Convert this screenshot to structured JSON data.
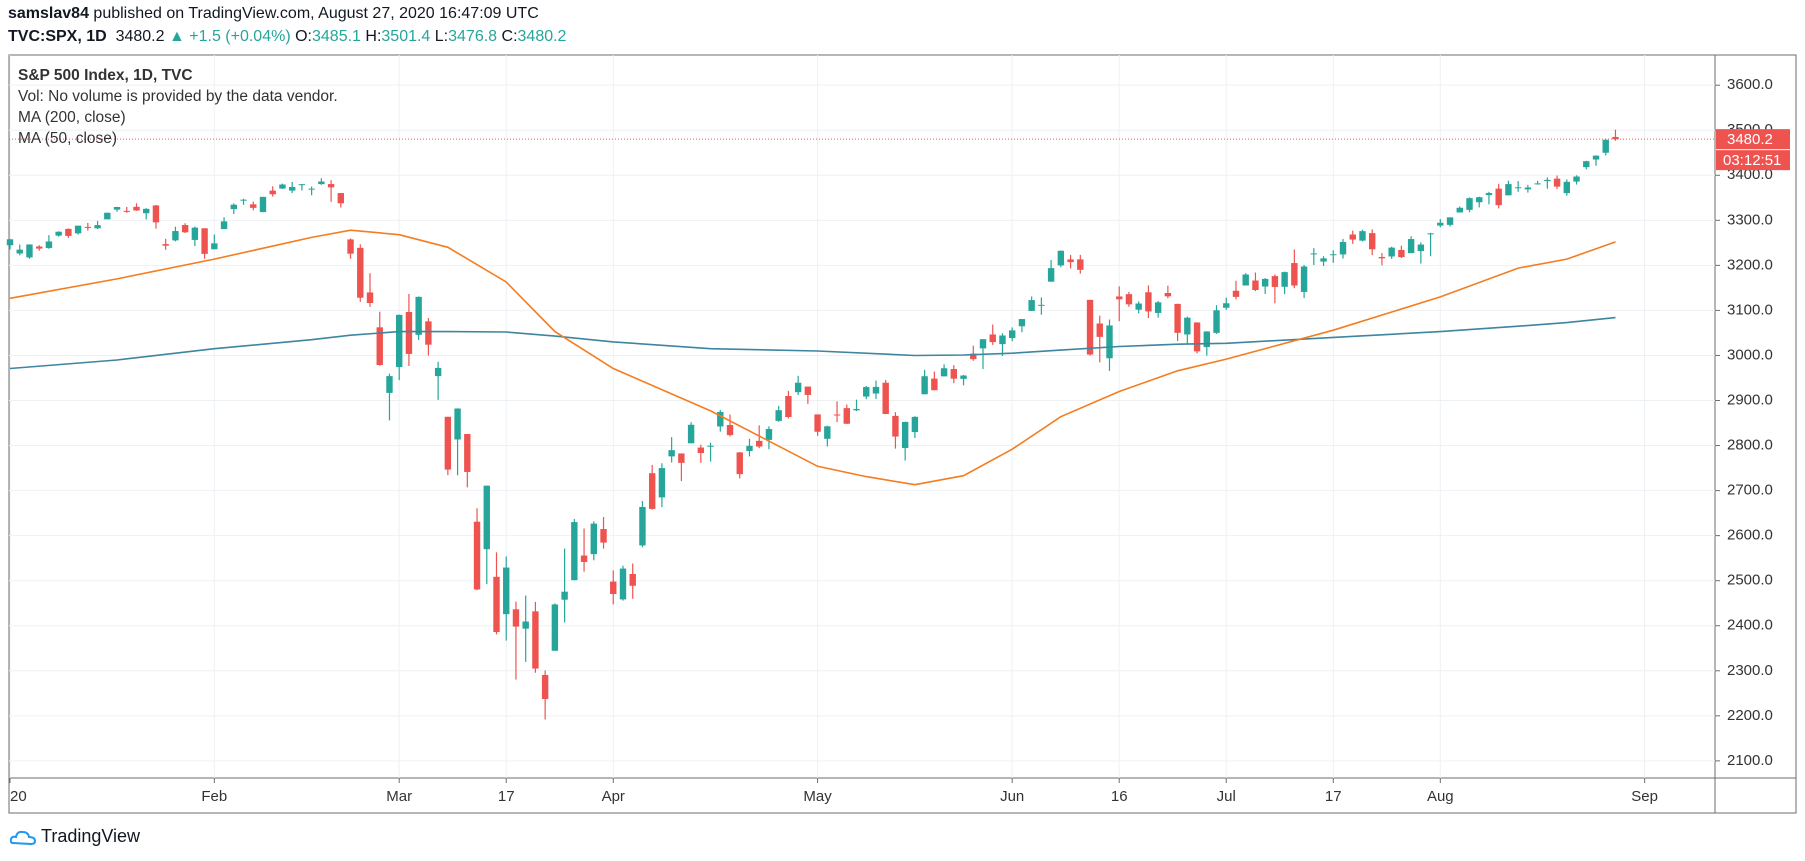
{
  "header": {
    "author": "samslav84",
    "published": "published on TradingView.com, August 27, 2020 16:47:09 UTC",
    "symbol": "TVC:SPX, 1D",
    "last": "3480.2",
    "change": "▲ +1.5 (+0.04%)",
    "ohlc": [
      {
        "label": "O:",
        "value": "3485.1"
      },
      {
        "label": "H:",
        "value": "3501.4"
      },
      {
        "label": "L:",
        "value": "3476.8"
      },
      {
        "label": "C:",
        "value": "3480.2"
      }
    ]
  },
  "footer": {
    "brand": "TradingView"
  },
  "chart_data": {
    "type": "candlestick",
    "title": "S&P 500 Index, 1D, TVC",
    "volume_note": "Vol: No volume is provided by the data vendor.",
    "up_color": "#26a69a",
    "down_color": "#ef5350",
    "grid": true,
    "last_price": 3480.2,
    "countdown": "03:12:51",
    "ylim": [
      2062,
      3667
    ],
    "yticks": [
      {
        "value": 2100,
        "label": "2100.0"
      },
      {
        "value": 2200,
        "label": "2200.0"
      },
      {
        "value": 2300,
        "label": "2300.0"
      },
      {
        "value": 2400,
        "label": "2400.0"
      },
      {
        "value": 2500,
        "label": "2500.0"
      },
      {
        "value": 2600,
        "label": "2600.0"
      },
      {
        "value": 2700,
        "label": "2700.0"
      },
      {
        "value": 2800,
        "label": "2800.0"
      },
      {
        "value": 2900,
        "label": "2900.0"
      },
      {
        "value": 3000,
        "label": "3000.0"
      },
      {
        "value": 3100,
        "label": "3100.0"
      },
      {
        "value": 3200,
        "label": "3200.0"
      },
      {
        "value": 3300,
        "label": "3300.0"
      },
      {
        "value": 3400,
        "label": "3400.0"
      },
      {
        "value": 3500,
        "label": "3500.0"
      },
      {
        "value": 3600,
        "label": "3600.0"
      }
    ],
    "xticks": [
      {
        "value": "2020-01-02",
        "label": "20"
      },
      {
        "value": "2020-02-03",
        "label": "Feb"
      },
      {
        "value": "2020-03-02",
        "label": "Mar"
      },
      {
        "value": "2020-03-17",
        "label": "17"
      },
      {
        "value": "2020-04-01",
        "label": "Apr"
      },
      {
        "value": "2020-05-01",
        "label": "May"
      },
      {
        "value": "2020-06-01",
        "label": "Jun"
      },
      {
        "value": "2020-06-16",
        "label": "16"
      },
      {
        "value": "2020-07-01",
        "label": "Jul"
      },
      {
        "value": "2020-07-17",
        "label": "17"
      },
      {
        "value": "2020-08-03",
        "label": "Aug"
      },
      {
        "value": "2020-09-01",
        "label": "Sep"
      }
    ],
    "x": [
      "2020-01-02",
      "2020-01-03",
      "2020-01-06",
      "2020-01-07",
      "2020-01-08",
      "2020-01-09",
      "2020-01-10",
      "2020-01-13",
      "2020-01-14",
      "2020-01-15",
      "2020-01-16",
      "2020-01-17",
      "2020-01-21",
      "2020-01-22",
      "2020-01-23",
      "2020-01-24",
      "2020-01-27",
      "2020-01-28",
      "2020-01-29",
      "2020-01-30",
      "2020-01-31",
      "2020-02-03",
      "2020-02-04",
      "2020-02-05",
      "2020-02-06",
      "2020-02-07",
      "2020-02-10",
      "2020-02-11",
      "2020-02-12",
      "2020-02-13",
      "2020-02-14",
      "2020-02-18",
      "2020-02-19",
      "2020-02-20",
      "2020-02-21",
      "2020-02-24",
      "2020-02-25",
      "2020-02-26",
      "2020-02-27",
      "2020-02-28",
      "2020-03-02",
      "2020-03-03",
      "2020-03-04",
      "2020-03-05",
      "2020-03-06",
      "2020-03-09",
      "2020-03-10",
      "2020-03-11",
      "2020-03-12",
      "2020-03-13",
      "2020-03-16",
      "2020-03-17",
      "2020-03-18",
      "2020-03-19",
      "2020-03-20",
      "2020-03-23",
      "2020-03-24",
      "2020-03-25",
      "2020-03-26",
      "2020-03-27",
      "2020-03-30",
      "2020-03-31",
      "2020-04-01",
      "2020-04-02",
      "2020-04-03",
      "2020-04-06",
      "2020-04-07",
      "2020-04-08",
      "2020-04-09",
      "2020-04-13",
      "2020-04-14",
      "2020-04-15",
      "2020-04-16",
      "2020-04-17",
      "2020-04-20",
      "2020-04-21",
      "2020-04-22",
      "2020-04-23",
      "2020-04-24",
      "2020-04-27",
      "2020-04-28",
      "2020-04-29",
      "2020-04-30",
      "2020-05-01",
      "2020-05-04",
      "2020-05-05",
      "2020-05-06",
      "2020-05-07",
      "2020-05-08",
      "2020-05-11",
      "2020-05-12",
      "2020-05-13",
      "2020-05-14",
      "2020-05-15",
      "2020-05-18",
      "2020-05-19",
      "2020-05-20",
      "2020-05-21",
      "2020-05-22",
      "2020-05-26",
      "2020-05-27",
      "2020-05-28",
      "2020-05-29",
      "2020-06-01",
      "2020-06-02",
      "2020-06-03",
      "2020-06-04",
      "2020-06-05",
      "2020-06-08",
      "2020-06-09",
      "2020-06-10",
      "2020-06-11",
      "2020-06-12",
      "2020-06-15",
      "2020-06-16",
      "2020-06-17",
      "2020-06-18",
      "2020-06-19",
      "2020-06-22",
      "2020-06-23",
      "2020-06-24",
      "2020-06-25",
      "2020-06-26",
      "2020-06-29",
      "2020-06-30",
      "2020-07-01",
      "2020-07-02",
      "2020-07-06",
      "2020-07-07",
      "2020-07-08",
      "2020-07-09",
      "2020-07-10",
      "2020-07-13",
      "2020-07-14",
      "2020-07-15",
      "2020-07-16",
      "2020-07-17",
      "2020-07-20",
      "2020-07-21",
      "2020-07-22",
      "2020-07-23",
      "2020-07-24",
      "2020-07-27",
      "2020-07-28",
      "2020-07-29",
      "2020-07-30",
      "2020-07-31",
      "2020-08-03",
      "2020-08-04",
      "2020-08-05",
      "2020-08-06",
      "2020-08-07",
      "2020-08-10",
      "2020-08-11",
      "2020-08-12",
      "2020-08-13",
      "2020-08-14",
      "2020-08-17",
      "2020-08-18",
      "2020-08-19",
      "2020-08-20",
      "2020-08-21",
      "2020-08-24",
      "2020-08-25",
      "2020-08-26",
      "2020-08-27"
    ],
    "open": [
      3244.7,
      3226.4,
      3217.6,
      3241.9,
      3238.6,
      3266.0,
      3281.0,
      3271.1,
      3285.4,
      3282.3,
      3302.2,
      3323.7,
      3321.0,
      3330.0,
      3315.8,
      3333.1,
      3247.2,
      3255.4,
      3289.5,
      3256.5,
      3282.3,
      3235.7,
      3280.6,
      3324.9,
      3344.9,
      3335.5,
      3318.3,
      3365.9,
      3370.5,
      3365.9,
      3378.1,
      3369.0,
      3380.4,
      3380.5,
      3360.5,
      3257.6,
      3238.9,
      3139.9,
      3062.5,
      2916.9,
      2974.3,
      3096.5,
      3045.8,
      3075.7,
      2954.2,
      2863.9,
      2813.5,
      2825.6,
      2630.9,
      2569.99,
      2508.6,
      2425.7,
      2436.5,
      2393.5,
      2431.9,
      2290.7,
      2344.4,
      2457.8,
      2501.3,
      2555.9,
      2558.98,
      2614.7,
      2498.1,
      2458.5,
      2514.9,
      2578.3,
      2738.7,
      2685.0,
      2776.0,
      2782.5,
      2805.1,
      2795.6,
      2799.3,
      2842.4,
      2845.6,
      2784.8,
      2787.9,
      2810.4,
      2812.6,
      2854.7,
      2909.96,
      2918.5,
      2930.9,
      2869.1,
      2815.0,
      2868.9,
      2883.1,
      2878.3,
      2908.8,
      2915.5,
      2939.5,
      2865.9,
      2794.5,
      2829.9,
      2913.9,
      2948.6,
      2953.6,
      2969.95,
      2948.0,
      3004.1,
      3015.7,
      3046.6,
      3025.2,
      3038.8,
      3064.8,
      3098.9,
      3111.6,
      3163.8,
      3199.9,
      3213.3,
      3213.4,
      3123.5,
      3071.0,
      2993.8,
      3131.0,
      3136.1,
      3101.6,
      3140.3,
      3094.4,
      3138.7,
      3114.4,
      3046.6,
      3073.2,
      3018.6,
      3050.2,
      3105.9,
      3143.6,
      3155.3,
      3166.4,
      3153.1,
      3176.2,
      3152.5,
      3205.1,
      3141.1,
      3225.98,
      3208.4,
      3224.2,
      3224.3,
      3268.5,
      3254.9,
      3271.6,
      3218.6,
      3219.8,
      3234.3,
      3227.2,
      3231.8,
      3270.5,
      3288.3,
      3289.9,
      3317.4,
      3323.2,
      3340.1,
      3356.0,
      3370.3,
      3355.5,
      3372.9,
      3368.7,
      3380.9,
      3387.0,
      3392.5,
      3360.5,
      3386.0,
      3418.1,
      3435.0,
      3449.97,
      3485.1
    ],
    "high": [
      3258.1,
      3246.2,
      3246.8,
      3244.9,
      3267.1,
      3275.6,
      3282.0,
      3288.1,
      3294.2,
      3298.7,
      3317.1,
      3329.9,
      3329.8,
      3337.8,
      3326.9,
      3334.0,
      3258.9,
      3285.8,
      3293.5,
      3285.9,
      3282.3,
      3268.4,
      3306.9,
      3337.6,
      3347.9,
      3341.4,
      3352.3,
      3375.6,
      3381.5,
      3385.1,
      3380.7,
      3375.0,
      3393.5,
      3389.2,
      3360.8,
      3259.8,
      3246.9,
      3182.5,
      3097.1,
      2959.7,
      3090.9,
      3136.7,
      3130.97,
      3083.0,
      2985.9,
      2863.9,
      2882.6,
      2825.6,
      2660.9,
      2711.3,
      2562.98,
      2553.9,
      2453.6,
      2466.97,
      2453.0,
      2300.7,
      2449.7,
      2571.4,
      2637.0,
      2615.9,
      2631.8,
      2641.4,
      2522.8,
      2533.2,
      2538.2,
      2676.9,
      2756.9,
      2760.8,
      2818.6,
      2782.5,
      2851.9,
      2801.9,
      2806.5,
      2879.2,
      2868.98,
      2785.5,
      2815.1,
      2844.9,
      2842.7,
      2887.7,
      2921.2,
      2954.9,
      2930.9,
      2869.1,
      2844.2,
      2898.2,
      2891.1,
      2901.9,
      2932.2,
      2944.3,
      2945.8,
      2874.1,
      2852.8,
      2865.0,
      2968.1,
      2964.2,
      2980.3,
      2978.5,
      2956.8,
      3021.7,
      3036.3,
      3068.7,
      3049.2,
      3062.2,
      3081.1,
      3130.9,
      3128.9,
      3211.7,
      3233.1,
      3223.0,
      3223.3,
      3123.5,
      3088.4,
      3079.8,
      3153.5,
      3141.2,
      3120.0,
      3155.5,
      3120.9,
      3154.9,
      3115.0,
      3086.3,
      3073.7,
      3053.9,
      3111.5,
      3128.4,
      3165.8,
      3182.6,
      3184.2,
      3171.8,
      3179.8,
      3186.2,
      3235.3,
      3200.95,
      3238.3,
      3220.4,
      3233.5,
      3258.6,
      3277.3,
      3279.3,
      3279.99,
      3227.3,
      3241.4,
      3243.7,
      3264.7,
      3250.9,
      3272.2,
      3302.7,
      3306.8,
      3330.8,
      3351.0,
      3352.5,
      3363.3,
      3381.0,
      3387.9,
      3387.2,
      3378.5,
      3387.6,
      3395.1,
      3399.5,
      3390.8,
      3399.96,
      3432.1,
      3444.2,
      3481.1,
      3501.4
    ],
    "low": [
      3235.5,
      3222.3,
      3214.6,
      3232.4,
      3236.7,
      3263.7,
      3260.9,
      3268.4,
      3277.2,
      3280.7,
      3302.2,
      3318.9,
      3316.6,
      3321.0,
      3301.9,
      3281.5,
      3234.5,
      3253.2,
      3271.9,
      3242.8,
      3214.7,
      3235.7,
      3280.6,
      3313.8,
      3334.4,
      3322.1,
      3317.8,
      3352.7,
      3369.7,
      3360.5,
      3366.2,
      3355.6,
      3378.8,
      3341.0,
      3328.5,
      3214.7,
      3118.8,
      3108.0,
      2977.4,
      2855.8,
      2945.2,
      2976.6,
      3034.4,
      2999.8,
      2901.5,
      2734.4,
      2734.0,
      2707.2,
      2478.9,
      2492.4,
      2380.9,
      2367.0,
      2280.5,
      2319.8,
      2295.6,
      2191.9,
      2344.4,
      2407.5,
      2500.7,
      2520.0,
      2545.3,
      2571.2,
      2447.5,
      2455.8,
      2459.96,
      2574.3,
      2657.7,
      2663.3,
      2762.4,
      2721.2,
      2805.1,
      2761.5,
      2764.3,
      2830.9,
      2820.4,
      2727.1,
      2775.9,
      2794.3,
      2791.8,
      2852.9,
      2860.1,
      2912.2,
      2892.5,
      2821.6,
      2797.9,
      2852.1,
      2847.7,
      2876.5,
      2902.9,
      2903.4,
      2869.6,
      2793.2,
      2766.6,
      2816.8,
      2913.9,
      2922.4,
      2953.6,
      2938.6,
      2933.6,
      2988.2,
      2969.8,
      3023.4,
      2998.6,
      3031.5,
      3051.6,
      3098.9,
      3090.4,
      3163.8,
      3196.0,
      3193.1,
      3181.5,
      2999.5,
      2984.5,
      2965.7,
      3076.1,
      3108.0,
      3093.5,
      3083.1,
      3084.1,
      3127.1,
      3032.1,
      3024.0,
      3004.6,
      2999.7,
      3047.8,
      3101.2,
      3124.5,
      3155.3,
      3142.9,
      3136.5,
      3115.7,
      3136.2,
      3149.4,
      3127.7,
      3200.8,
      3198.6,
      3205.7,
      3215.2,
      3247.8,
      3253.1,
      3222.7,
      3200.1,
      3214.3,
      3216.2,
      3227.2,
      3204.1,
      3220.3,
      3284.5,
      3286.4,
      3317.4,
      3318.1,
      3328.7,
      3335.4,
      3326.4,
      3355.5,
      3363.4,
      3361.6,
      3379.2,
      3370.2,
      3369.7,
      3354.7,
      3379.3,
      3413.1,
      3421.1,
      3444.2,
      3476.8
    ],
    "close": [
      3257.9,
      3234.9,
      3246.3,
      3237.2,
      3253.1,
      3274.7,
      3265.4,
      3288.1,
      3283.2,
      3289.3,
      3316.8,
      3329.6,
      3320.8,
      3321.8,
      3325.5,
      3295.5,
      3243.6,
      3276.2,
      3273.4,
      3283.7,
      3225.5,
      3248.9,
      3297.6,
      3334.7,
      3345.8,
      3327.7,
      3352.1,
      3357.8,
      3379.5,
      3373.9,
      3380.2,
      3370.3,
      3386.2,
      3373.2,
      3337.8,
      3225.9,
      3128.2,
      3116.4,
      2978.8,
      2954.2,
      3090.2,
      3003.4,
      3130.1,
      3023.9,
      2972.4,
      2746.6,
      2882.2,
      2741.4,
      2480.6,
      2711.0,
      2386.1,
      2529.2,
      2398.1,
      2409.4,
      2304.9,
      2237.4,
      2447.3,
      2475.6,
      2630.1,
      2541.5,
      2626.7,
      2584.6,
      2470.5,
      2526.9,
      2488.7,
      2663.7,
      2659.4,
      2750.0,
      2789.8,
      2761.6,
      2846.1,
      2783.4,
      2799.6,
      2874.6,
      2823.2,
      2736.6,
      2799.3,
      2797.8,
      2836.7,
      2878.5,
      2863.4,
      2939.5,
      2912.4,
      2830.7,
      2842.7,
      2868.4,
      2848.4,
      2881.2,
      2929.8,
      2930.2,
      2870.1,
      2820.0,
      2852.5,
      2863.7,
      2953.9,
      2922.9,
      2971.6,
      2948.5,
      2955.5,
      2991.8,
      3036.1,
      3029.7,
      3044.3,
      3055.7,
      3080.8,
      3122.9,
      3112.4,
      3193.9,
      3232.4,
      3207.2,
      3190.1,
      3002.1,
      3041.3,
      3066.6,
      3124.7,
      3113.5,
      3115.3,
      3097.7,
      3117.9,
      3131.3,
      3050.3,
      3083.8,
      3009.1,
      3053.2,
      3100.3,
      3115.9,
      3130.0,
      3179.7,
      3145.3,
      3169.9,
      3152.1,
      3185.0,
      3155.2,
      3197.5,
      3226.6,
      3215.6,
      3224.7,
      3251.8,
      3257.3,
      3276.0,
      3235.7,
      3215.6,
      3239.4,
      3218.4,
      3258.4,
      3246.2,
      3271.1,
      3294.6,
      3306.5,
      3327.8,
      3349.2,
      3351.3,
      3360.5,
      3333.7,
      3380.4,
      3373.4,
      3372.9,
      3382.0,
      3389.8,
      3374.9,
      3385.5,
      3397.2,
      3431.3,
      3443.6,
      3478.7,
      3480.2
    ],
    "series": [
      {
        "name": "MA (200, close)",
        "color": "#3d85a0",
        "x": [
          "2020-01-02",
          "2020-01-17",
          "2020-02-03",
          "2020-02-18",
          "2020-02-24",
          "2020-03-02",
          "2020-03-09",
          "2020-03-17",
          "2020-03-24",
          "2020-04-01",
          "2020-04-16",
          "2020-05-01",
          "2020-05-15",
          "2020-05-22",
          "2020-06-01",
          "2020-06-08",
          "2020-06-16",
          "2020-06-24",
          "2020-07-01",
          "2020-07-17",
          "2020-08-03",
          "2020-08-13",
          "2020-08-20",
          "2020-08-27"
        ],
        "values": [
          2971,
          2990,
          3015,
          3035,
          3045,
          3053,
          3053,
          3052,
          3043,
          3030,
          3015,
          3010,
          3000,
          3001,
          3005,
          3012,
          3020,
          3025,
          3027,
          3040,
          3053,
          3065,
          3073,
          3084
        ]
      },
      {
        "name": "MA (50, close)",
        "color": "#f57c1f",
        "x": [
          "2020-01-02",
          "2020-01-17",
          "2020-02-03",
          "2020-02-18",
          "2020-02-24",
          "2020-03-02",
          "2020-03-09",
          "2020-03-17",
          "2020-03-24",
          "2020-04-01",
          "2020-04-16",
          "2020-05-01",
          "2020-05-08",
          "2020-05-15",
          "2020-05-22",
          "2020-06-01",
          "2020-06-08",
          "2020-06-16",
          "2020-06-24",
          "2020-07-01",
          "2020-07-17",
          "2020-08-03",
          "2020-08-13",
          "2020-08-20",
          "2020-08-27"
        ],
        "values": [
          3127,
          3170,
          3214,
          3262,
          3278,
          3268,
          3240,
          3163,
          3053,
          2971,
          2877,
          2754,
          2731,
          2713,
          2733,
          2792,
          2864,
          2920,
          2966,
          2992,
          3056,
          3130,
          3194,
          3214,
          3252
        ]
      }
    ]
  }
}
